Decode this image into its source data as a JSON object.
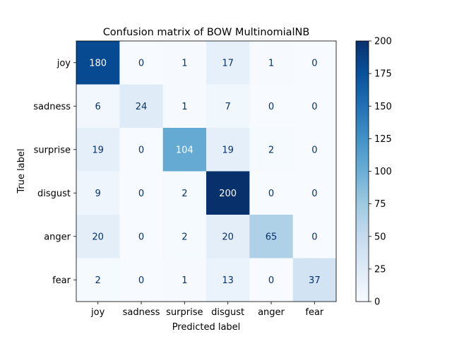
{
  "chart_data": {
    "type": "heatmap",
    "title": "Confusion matrix of BOW MultinomialNB",
    "xlabel": "Predicted label",
    "ylabel": "True label",
    "x_categories": [
      "joy",
      "sadness",
      "surprise",
      "disgust",
      "anger",
      "fear"
    ],
    "y_categories": [
      "joy",
      "sadness",
      "surprise",
      "disgust",
      "anger",
      "fear"
    ],
    "values": [
      [
        180,
        0,
        1,
        17,
        1,
        0
      ],
      [
        6,
        24,
        1,
        7,
        0,
        0
      ],
      [
        19,
        0,
        104,
        19,
        2,
        0
      ],
      [
        9,
        0,
        2,
        200,
        0,
        0
      ],
      [
        20,
        0,
        2,
        20,
        65,
        0
      ],
      [
        2,
        0,
        1,
        13,
        0,
        37
      ]
    ],
    "colorbar": {
      "colormap": "Blues",
      "range": [
        0,
        200
      ],
      "ticks": [
        0,
        25,
        50,
        75,
        100,
        125,
        150,
        175,
        200
      ]
    }
  }
}
